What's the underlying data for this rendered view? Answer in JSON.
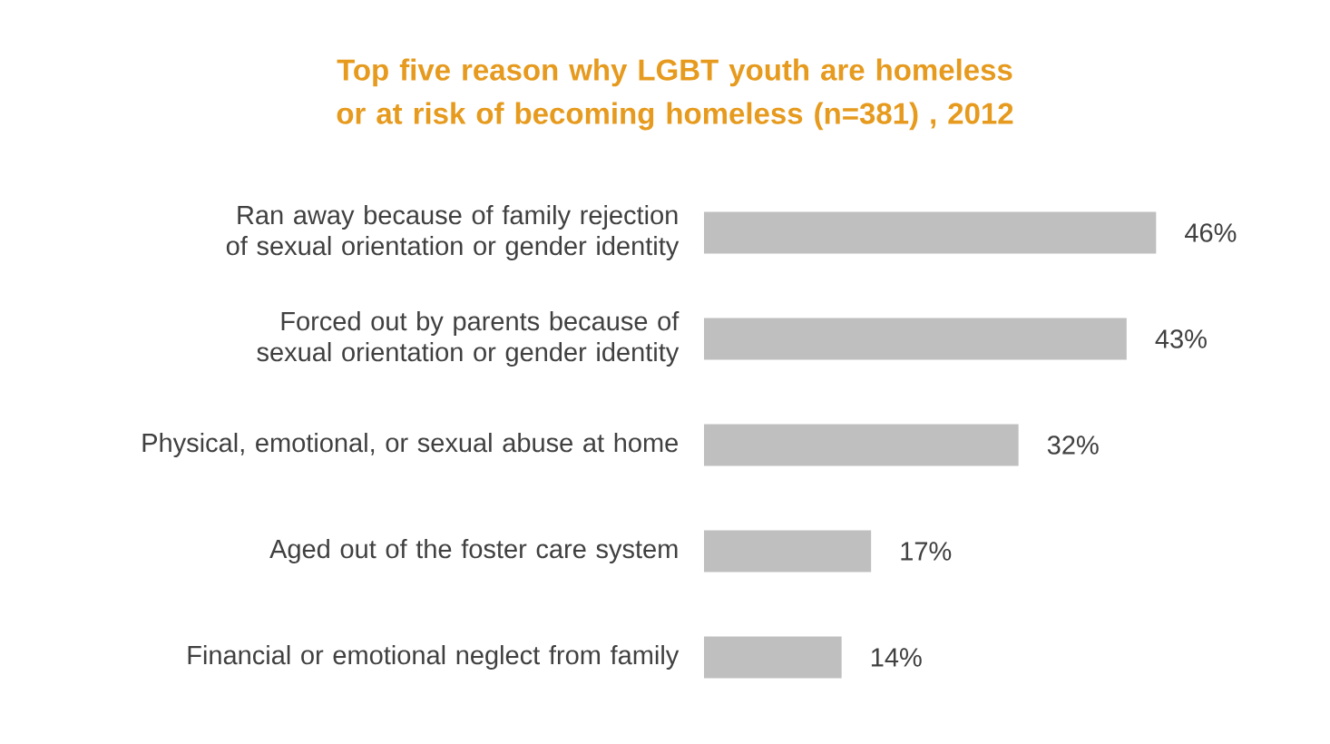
{
  "chart_data": {
    "type": "bar",
    "orientation": "horizontal",
    "title": "Top five reason why LGBT youth are homeless or at risk of becoming homeless (n=381) , 2012",
    "categories": [
      "Ran away because of family rejection of sexual orientation or gender identity",
      "Forced out by parents because of sexual orientation or gender identity",
      "Physical, emotional, or sexual abuse at home",
      "Aged out of the foster care system",
      "Financial or emotional neglect from family"
    ],
    "values": [
      46,
      43,
      32,
      17,
      14
    ],
    "value_labels": [
      "46%",
      "43%",
      "32%",
      "17%",
      "14%"
    ],
    "color": "#bfbfbf"
  }
}
